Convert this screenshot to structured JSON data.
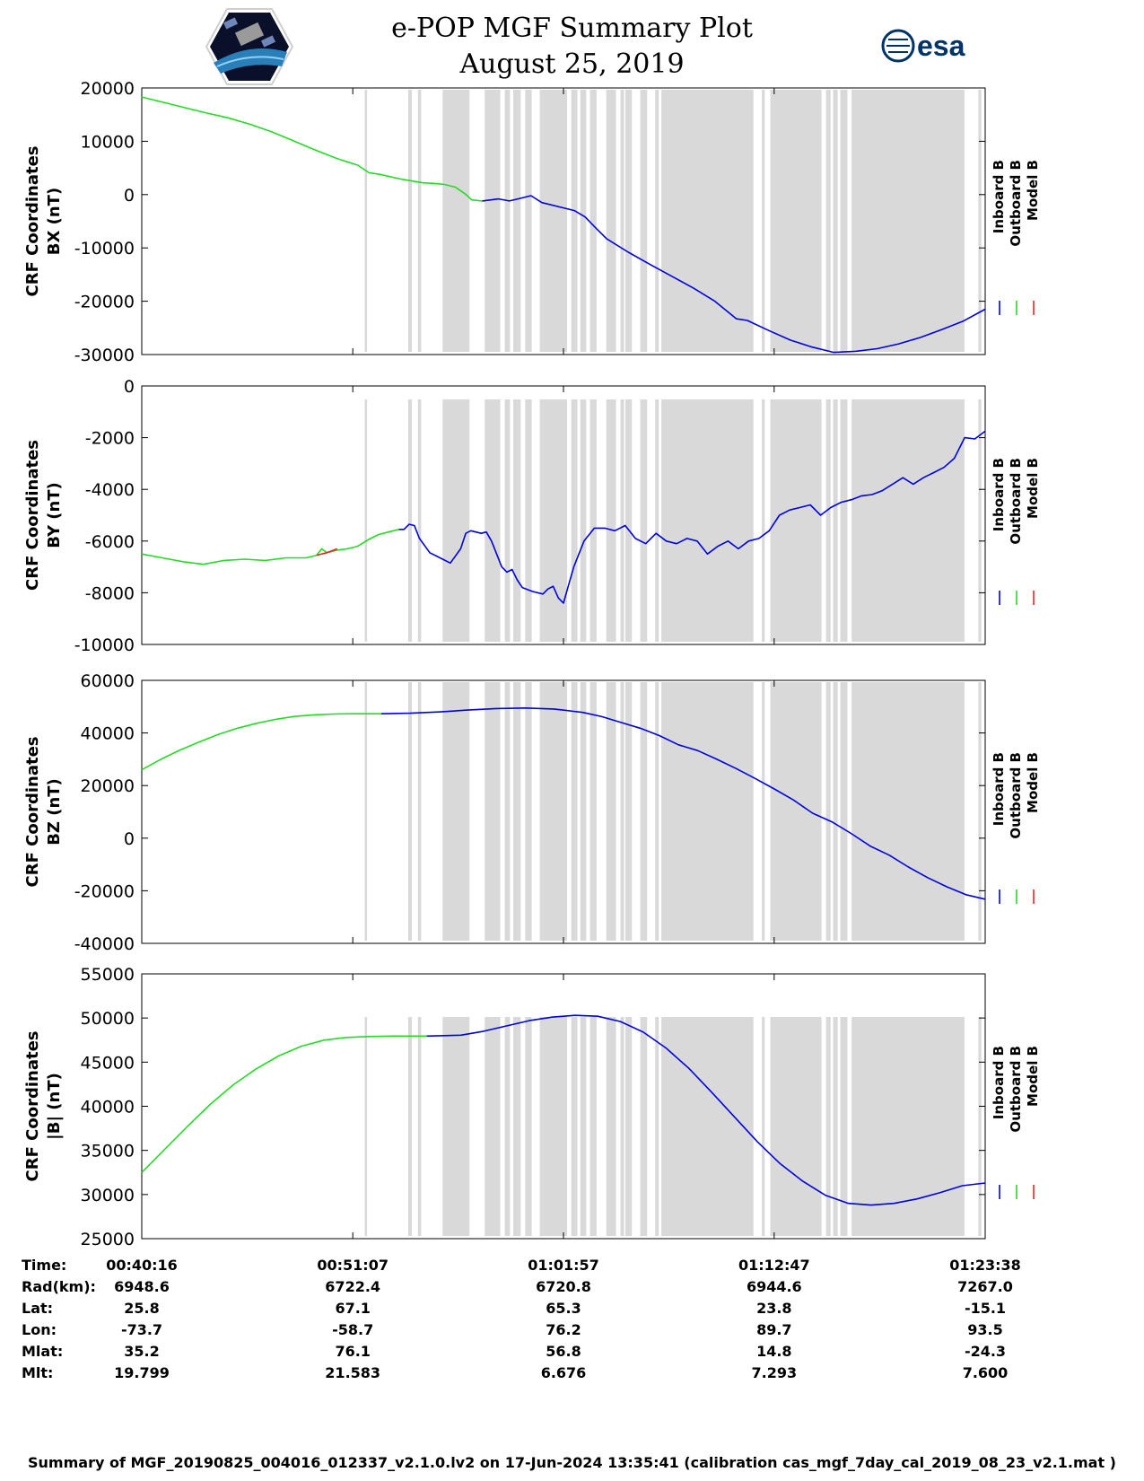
{
  "header": {
    "title_line1": "e-POP MGF Summary Plot",
    "title_line2": "August 25, 2019",
    "esa_logo_text": "esa"
  },
  "legend": {
    "items": [
      {
        "label": "Inboard B",
        "color": "#0000dd"
      },
      {
        "label": "Outboard B",
        "color": "#22dd22"
      },
      {
        "label": "Model B",
        "color": "#ee2222"
      }
    ]
  },
  "colors": {
    "inboard": "#0000dd",
    "outboard": "#22dd22",
    "model": "#ee2222",
    "gap_shading": "#d9d9d9"
  },
  "chart_data": [
    {
      "type": "line",
      "component": "BX",
      "ylabel_line1": "CRF Coordinates",
      "ylabel_line2": "BX (nT)",
      "ylim": [
        -30000,
        20000
      ],
      "yticks": [
        20000,
        10000,
        0,
        -10000,
        -20000,
        -30000
      ],
      "series": [
        {
          "name": "Outboard B",
          "points": [
            [
              0,
              18300
            ],
            [
              2,
              17300
            ],
            [
              4,
              16300
            ],
            [
              6,
              15300
            ],
            [
              8,
              14400
            ],
            [
              10,
              13200
            ],
            [
              12,
              11800
            ],
            [
              14,
              10100
            ],
            [
              16,
              8400
            ],
            [
              18,
              6800
            ],
            [
              20,
              5500
            ],
            [
              21,
              4100
            ],
            [
              22,
              3800
            ],
            [
              24,
              2900
            ],
            [
              26,
              2200
            ],
            [
              27,
              2100
            ],
            [
              28,
              1900
            ],
            [
              29,
              1400
            ],
            [
              30,
              0
            ],
            [
              30.5,
              -1000
            ],
            [
              31.5,
              -1200
            ]
          ]
        },
        {
          "name": "Inboard B",
          "points": [
            [
              31.5,
              -1200
            ],
            [
              33,
              -800
            ],
            [
              34,
              -1200
            ],
            [
              35,
              -700
            ],
            [
              36,
              -200
            ],
            [
              37,
              -1500
            ],
            [
              39,
              -2500
            ],
            [
              40,
              -3000
            ],
            [
              41,
              -4200
            ],
            [
              42,
              -6300
            ],
            [
              43,
              -8300
            ],
            [
              45,
              -10800
            ],
            [
              47,
              -13100
            ],
            [
              49,
              -15300
            ],
            [
              51,
              -17500
            ],
            [
              53,
              -20000
            ],
            [
              55,
              -23300
            ],
            [
              56,
              -23600
            ],
            [
              58,
              -25500
            ],
            [
              60,
              -27300
            ],
            [
              62,
              -28600
            ],
            [
              64,
              -29600
            ],
            [
              66,
              -29400
            ],
            [
              68,
              -28900
            ],
            [
              70,
              -28000
            ],
            [
              72,
              -26800
            ],
            [
              74,
              -25300
            ],
            [
              76,
              -23700
            ],
            [
              78,
              -21500
            ]
          ]
        }
      ]
    },
    {
      "type": "line",
      "component": "BY",
      "ylabel_line1": "CRF Coordinates",
      "ylabel_line2": "BY (nT)",
      "ylim": [
        -10000,
        0
      ],
      "yticks": [
        0,
        -2000,
        -4000,
        -6000,
        -8000,
        -10000
      ],
      "series": [
        {
          "name": "Outboard B",
          "points": [
            [
              0,
              -6500
            ],
            [
              2,
              -6650
            ],
            [
              4,
              -6800
            ],
            [
              6,
              -6900
            ],
            [
              8,
              -6750
            ],
            [
              10,
              -6700
            ],
            [
              12,
              -6750
            ],
            [
              14,
              -6650
            ],
            [
              16,
              -6650
            ],
            [
              17,
              -6550
            ],
            [
              17.5,
              -6300
            ],
            [
              18,
              -6450
            ],
            [
              19,
              -6350
            ],
            [
              20,
              -6300
            ],
            [
              21,
              -6200
            ],
            [
              22,
              -5950
            ],
            [
              23,
              -5750
            ],
            [
              24,
              -5650
            ],
            [
              25,
              -5550
            ]
          ]
        },
        {
          "name": "Model B",
          "points": [
            [
              17,
              -6550
            ],
            [
              18,
              -6450
            ],
            [
              19,
              -6300
            ]
          ]
        },
        {
          "name": "Inboard B",
          "points": [
            [
              25,
              -5550
            ],
            [
              25.5,
              -5550
            ],
            [
              26,
              -5350
            ],
            [
              26.5,
              -5400
            ],
            [
              27,
              -5900
            ],
            [
              28,
              -6450
            ],
            [
              29,
              -6650
            ],
            [
              30,
              -6850
            ],
            [
              31,
              -6300
            ],
            [
              31.5,
              -5700
            ],
            [
              32,
              -5600
            ],
            [
              33,
              -5700
            ],
            [
              33.5,
              -5650
            ],
            [
              34,
              -6000
            ],
            [
              34.5,
              -6500
            ],
            [
              35,
              -7000
            ],
            [
              35.5,
              -7200
            ],
            [
              36,
              -7100
            ],
            [
              36.5,
              -7500
            ],
            [
              37,
              -7800
            ],
            [
              38,
              -7950
            ],
            [
              39,
              -8050
            ],
            [
              39.5,
              -7850
            ],
            [
              40,
              -7750
            ],
            [
              40.5,
              -8200
            ],
            [
              41,
              -8400
            ],
            [
              41.5,
              -7700
            ],
            [
              42,
              -7000
            ],
            [
              43,
              -6000
            ],
            [
              44,
              -5500
            ],
            [
              45,
              -5500
            ],
            [
              46,
              -5600
            ],
            [
              47,
              -5400
            ],
            [
              48,
              -5900
            ],
            [
              49,
              -6100
            ],
            [
              50,
              -5700
            ],
            [
              51,
              -6000
            ],
            [
              52,
              -6100
            ],
            [
              53,
              -5900
            ],
            [
              54,
              -6000
            ],
            [
              55,
              -6500
            ],
            [
              56,
              -6200
            ],
            [
              57,
              -6000
            ],
            [
              58,
              -6300
            ],
            [
              59,
              -6000
            ],
            [
              60,
              -5900
            ],
            [
              61,
              -5600
            ],
            [
              62,
              -5000
            ],
            [
              63,
              -4800
            ],
            [
              64,
              -4700
            ],
            [
              65,
              -4600
            ],
            [
              66,
              -5000
            ],
            [
              67,
              -4700
            ],
            [
              68,
              -4500
            ],
            [
              69,
              -4400
            ],
            [
              70,
              -4250
            ],
            [
              71,
              -4200
            ],
            [
              72,
              -4050
            ],
            [
              73,
              -3800
            ],
            [
              74,
              -3550
            ],
            [
              75,
              -3800
            ],
            [
              76,
              -3550
            ],
            [
              77,
              -3350
            ],
            [
              78,
              -3150
            ],
            [
              79,
              -2800
            ],
            [
              80,
              -2000
            ],
            [
              81,
              -2050
            ],
            [
              82,
              -1750
            ]
          ]
        }
      ]
    },
    {
      "type": "line",
      "component": "BZ",
      "ylabel_line1": "CRF Coordinates",
      "ylabel_line2": "BZ (nT)",
      "ylim": [
        -40000,
        60000
      ],
      "yticks": [
        60000,
        40000,
        20000,
        0,
        -20000,
        -40000
      ],
      "series": [
        {
          "name": "Outboard B",
          "points": [
            [
              0,
              26000
            ],
            [
              2,
              30000
            ],
            [
              4,
              33500
            ],
            [
              6,
              36600
            ],
            [
              8,
              39500
            ],
            [
              10,
              41800
            ],
            [
              12,
              43700
            ],
            [
              14,
              45200
            ],
            [
              16,
              46300
            ],
            [
              18,
              46900
            ],
            [
              20,
              47200
            ],
            [
              22,
              47300
            ],
            [
              24,
              47300
            ],
            [
              25,
              47300
            ]
          ]
        },
        {
          "name": "Inboard B",
          "points": [
            [
              25,
              47300
            ],
            [
              28,
              47500
            ],
            [
              31,
              48000
            ],
            [
              34,
              48700
            ],
            [
              37,
              49300
            ],
            [
              40,
              49500
            ],
            [
              43,
              49100
            ],
            [
              46,
              47800
            ],
            [
              48,
              46200
            ],
            [
              50,
              44000
            ],
            [
              52,
              41800
            ],
            [
              54,
              39000
            ],
            [
              56,
              35500
            ],
            [
              58,
              33300
            ],
            [
              60,
              30000
            ],
            [
              62,
              26500
            ],
            [
              64,
              22700
            ],
            [
              66,
              18700
            ],
            [
              68,
              14500
            ],
            [
              70,
              9500
            ],
            [
              72,
              6200
            ],
            [
              74,
              1800
            ],
            [
              76,
              -3000
            ],
            [
              78,
              -6500
            ],
            [
              80,
              -11000
            ],
            [
              82,
              -15000
            ],
            [
              84,
              -18500
            ],
            [
              86,
              -21500
            ],
            [
              88,
              -23200
            ]
          ]
        }
      ]
    },
    {
      "type": "line",
      "component": "|B|",
      "ylabel_line1": "CRF Coordinates",
      "ylabel_line2": "|B| (nT)",
      "ylim": [
        25000,
        55000
      ],
      "yticks": [
        55000,
        50000,
        45000,
        40000,
        35000,
        30000,
        25000
      ],
      "series": [
        {
          "name": "Outboard B",
          "points": [
            [
              0,
              32500
            ],
            [
              2,
              35100
            ],
            [
              4,
              37700
            ],
            [
              6,
              40200
            ],
            [
              8,
              42400
            ],
            [
              10,
              44200
            ],
            [
              12,
              45700
            ],
            [
              14,
              46800
            ],
            [
              16,
              47500
            ],
            [
              18,
              47800
            ],
            [
              20,
              47900
            ],
            [
              22,
              47950
            ],
            [
              25,
              47950
            ]
          ]
        },
        {
          "name": "Inboard B",
          "points": [
            [
              25,
              47950
            ],
            [
              28,
              48050
            ],
            [
              30,
              48500
            ],
            [
              32,
              49100
            ],
            [
              34,
              49700
            ],
            [
              36,
              50100
            ],
            [
              38,
              50300
            ],
            [
              40,
              50200
            ],
            [
              42,
              49600
            ],
            [
              44,
              48400
            ],
            [
              46,
              46600
            ],
            [
              48,
              44300
            ],
            [
              50,
              41600
            ],
            [
              52,
              38800
            ],
            [
              54,
              36000
            ],
            [
              56,
              33500
            ],
            [
              58,
              31500
            ],
            [
              60,
              29900
            ],
            [
              62,
              29000
            ],
            [
              64,
              28800
            ],
            [
              66,
              29000
            ],
            [
              68,
              29500
            ],
            [
              70,
              30200
            ],
            [
              72,
              31000
            ],
            [
              74,
              31300
            ]
          ]
        }
      ]
    }
  ],
  "x_axis": {
    "data_range_seconds": [
      0,
      2602
    ],
    "tick_seconds": [
      0,
      651,
      1301,
      1951,
      2602
    ]
  },
  "shading_intervals_seconds": [
    [
      688,
      695
    ],
    [
      822,
      833
    ],
    [
      852,
      862
    ],
    [
      928,
      1011
    ],
    [
      1058,
      1106
    ],
    [
      1120,
      1136
    ],
    [
      1146,
      1169
    ],
    [
      1183,
      1203
    ],
    [
      1228,
      1312
    ],
    [
      1325,
      1344
    ],
    [
      1353,
      1371
    ],
    [
      1383,
      1403
    ],
    [
      1433,
      1463
    ],
    [
      1477,
      1488
    ],
    [
      1492,
      1512
    ],
    [
      1538,
      1559
    ],
    [
      1584,
      1595
    ],
    [
      1603,
      1887
    ],
    [
      1913,
      1922
    ],
    [
      1939,
      2097
    ],
    [
      2111,
      2125
    ],
    [
      2133,
      2147
    ],
    [
      2155,
      2177
    ],
    [
      2190,
      2538
    ],
    [
      2581,
      2590
    ]
  ],
  "table": {
    "row_labels": [
      "Time:",
      "Rad(km):",
      "Lat:",
      "Lon:",
      "Mlat:",
      "Mlt:"
    ],
    "columns": [
      {
        "time": "00:40:16",
        "rad": "6948.6",
        "lat": "25.8",
        "lon": "-73.7",
        "mlat": "35.2",
        "mlt": "19.799"
      },
      {
        "time": "00:51:07",
        "rad": "6722.4",
        "lat": "67.1",
        "lon": "-58.7",
        "mlat": "76.1",
        "mlt": "21.583"
      },
      {
        "time": "01:01:57",
        "rad": "6720.8",
        "lat": "65.3",
        "lon": "76.2",
        "mlat": "56.8",
        "mlt": "6.676"
      },
      {
        "time": "01:12:47",
        "rad": "6944.6",
        "lat": "23.8",
        "lon": "89.7",
        "mlat": "14.8",
        "mlt": "7.293"
      },
      {
        "time": "01:23:38",
        "rad": "7267.0",
        "lat": "-15.1",
        "lon": "93.5",
        "mlat": "-24.3",
        "mlt": "7.600"
      }
    ]
  },
  "footer": {
    "text": "Summary of MGF_20190825_004016_012337_v2.1.0.lv2 on 17-Jun-2024 13:35:41 (calibration cas_mgf_7day_cal_2019_08_23_v2.1.mat )"
  }
}
